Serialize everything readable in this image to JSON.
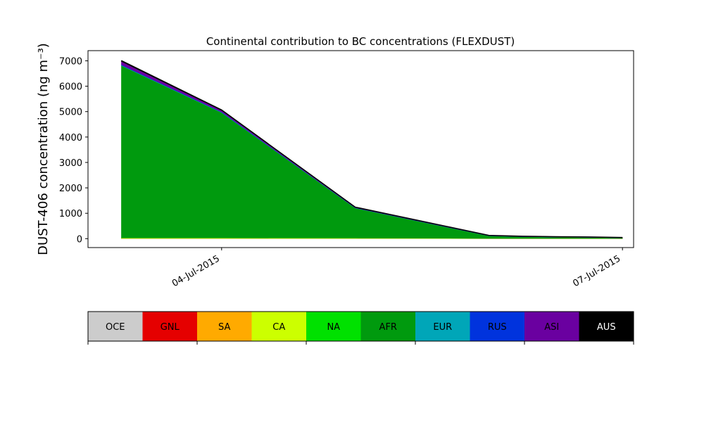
{
  "chart_data": {
    "type": "area",
    "title": "Continental contribution to BC concentrations (FLEXDUST)",
    "ylabel": "DUST-406 concentration (ng m⁻³)",
    "xlabel": "",
    "x": [
      "2015-07-03T06:00",
      "2015-07-04T00:00",
      "2015-07-05T00:00",
      "2015-07-06T00:00",
      "2015-07-06T06:00",
      "2015-07-06T12:00",
      "2015-07-06T18:00",
      "2015-07-07T00:00"
    ],
    "xlim": [
      "2015-07-03T00:00",
      "2015-07-07T02:00"
    ],
    "xticks": [
      {
        "value": "2015-07-04T00:00",
        "label": "04-Jul-2015"
      },
      {
        "value": "2015-07-07T00:00",
        "label": "07-Jul-2015"
      }
    ],
    "ylim": [
      -350,
      7400
    ],
    "yticks": [
      0,
      1000,
      2000,
      3000,
      4000,
      5000,
      6000,
      7000
    ],
    "series": [
      {
        "name": "OCE",
        "color": "#cccccc",
        "values": [
          5,
          5,
          5,
          2,
          2,
          2,
          2,
          2
        ]
      },
      {
        "name": "GNL",
        "color": "#e50000",
        "values": [
          2,
          2,
          2,
          1,
          1,
          1,
          1,
          1
        ]
      },
      {
        "name": "SA",
        "color": "#ffaa00",
        "values": [
          5,
          5,
          5,
          2,
          2,
          2,
          2,
          2
        ]
      },
      {
        "name": "CA",
        "color": "#ccff00",
        "values": [
          15,
          15,
          10,
          5,
          5,
          5,
          5,
          5
        ]
      },
      {
        "name": "NA",
        "color": "#00e100",
        "values": [
          5,
          5,
          5,
          2,
          2,
          2,
          2,
          2
        ]
      },
      {
        "name": "AFR",
        "color": "#009a0e",
        "values": [
          6780,
          4930,
          1180,
          100,
          65,
          50,
          40,
          20
        ]
      },
      {
        "name": "EUR",
        "color": "#00a6b8",
        "values": [
          20,
          15,
          5,
          2,
          2,
          2,
          2,
          2
        ]
      },
      {
        "name": "RUS",
        "color": "#0033dd",
        "values": [
          15,
          10,
          5,
          3,
          3,
          3,
          3,
          2
        ]
      },
      {
        "name": "ASI",
        "color": "#6a00a0",
        "values": [
          130,
          60,
          15,
          10,
          10,
          8,
          8,
          6
        ]
      },
      {
        "name": "AUS",
        "color": "#000000",
        "values": [
          30,
          20,
          10,
          5,
          5,
          5,
          5,
          5
        ]
      }
    ],
    "legend": {
      "placement": "bottom",
      "entries": [
        "OCE",
        "GNL",
        "SA",
        "CA",
        "NA",
        "AFR",
        "EUR",
        "RUS",
        "ASI",
        "AUS"
      ],
      "text_colors": [
        "#000000",
        "#000000",
        "#000000",
        "#000000",
        "#000000",
        "#000000",
        "#000000",
        "#000000",
        "#000000",
        "#ffffff"
      ]
    },
    "grid": false
  }
}
